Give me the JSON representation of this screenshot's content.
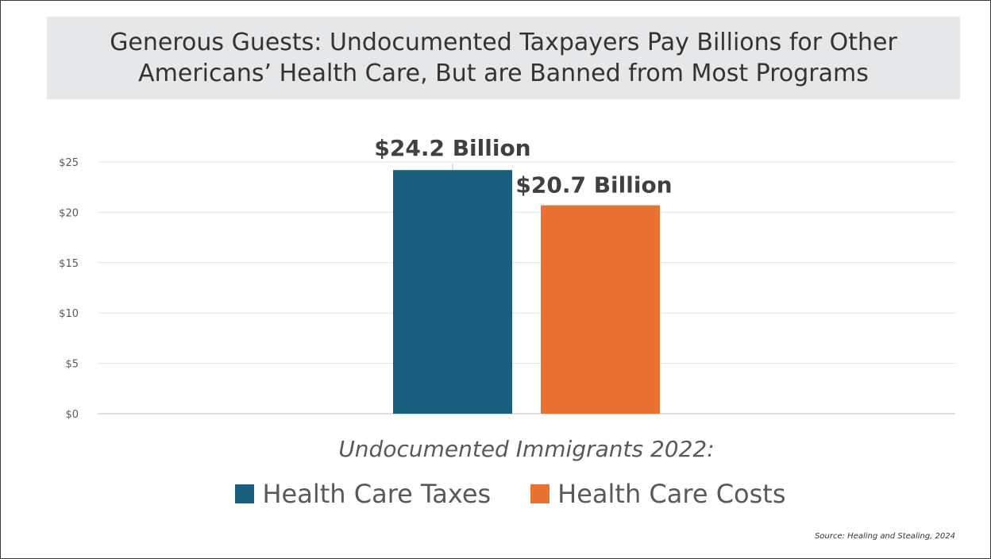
{
  "title": "Generous Guests: Undocumented Taxpayers Pay Billions for Other Americans’ Health Care, But are Banned from Most Programs",
  "source": "Source: Healing and Stealing, 2024",
  "chart_data": {
    "type": "bar",
    "title": "Generous Guests: Undocumented Taxpayers Pay Billions for Other Americans’ Health Care, But are Banned from Most Programs",
    "categories": [
      "Undocumented Immigrants 2022:"
    ],
    "series": [
      {
        "name": "Health Care Taxes",
        "values": [
          24.2
        ],
        "color": "#1a5f7e",
        "data_label": "$24.2 Billion"
      },
      {
        "name": "Health Care Costs",
        "values": [
          20.7
        ],
        "color": "#e97131",
        "data_label": "$20.7 Billion"
      }
    ],
    "y_ticks": [
      "$0",
      "$5",
      "$10",
      "$15",
      "$20",
      "$25"
    ],
    "ylim": [
      0,
      25
    ],
    "grid": true,
    "legend_position": "bottom"
  }
}
